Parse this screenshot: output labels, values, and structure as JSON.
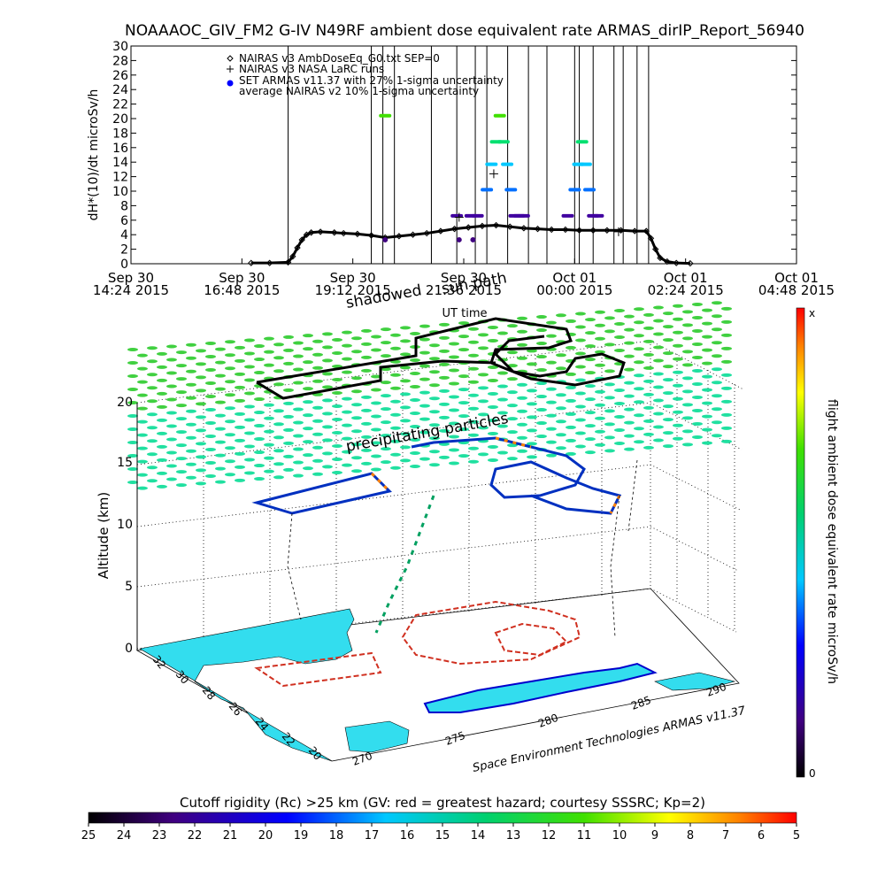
{
  "title": "NOAAAOC_GIV_FM2 G-IV   N49RF  ambient dose equivalent rate ARMAS_dirIP_Report_56940",
  "chart_data": [
    {
      "type": "scatter",
      "ylabel": "dH*(10)/dt microSv/h",
      "xlabel": "UT time",
      "ylim": [
        0,
        30
      ],
      "yticks": [
        0,
        2,
        4,
        6,
        8,
        10,
        12,
        14,
        16,
        18,
        20,
        22,
        24,
        26,
        28,
        30
      ],
      "xticks": [
        {
          "line1": "Sep 30",
          "line2": "14:24 2015"
        },
        {
          "line1": "Sep 30",
          "line2": "16:48 2015"
        },
        {
          "line1": "Sep 30",
          "line2": "19:12 2015"
        },
        {
          "line1": "Sep 30",
          "line2": "21:36 2015"
        },
        {
          "line1": "Oct 01",
          "line2": "00:00 2015"
        },
        {
          "line1": "Oct 01",
          "line2": "02:24 2015"
        },
        {
          "line1": "Oct 01",
          "line2": "04:48 2015"
        }
      ],
      "legend_position": "top-left",
      "legend": [
        {
          "symbol": "diamond",
          "label": "NAIRAS v3 AmbDoseEq_G0.txt SEP=0"
        },
        {
          "symbol": "plus",
          "label": "NAIRAS v3 NASA LaRC runs"
        },
        {
          "symbol": "dot",
          "label": "SET ARMAS v11.37 with 27% 1-sigma uncertainty"
        },
        {
          "symbol": "none",
          "label": "average NAIRAS v2 10% 1-sigma uncertainty"
        }
      ],
      "series": [
        {
          "name": "NAIRAS v3 AmbDoseEq_G0.txt SEP=0",
          "x_hours": [
            17.0,
            17.4,
            17.8,
            17.9,
            18.0,
            18.1,
            18.2,
            18.3,
            18.5,
            18.8,
            19.0,
            19.3,
            19.6,
            19.9,
            20.2,
            20.5,
            20.8,
            21.1,
            21.4,
            21.7,
            22.0,
            22.3,
            22.6,
            22.9,
            23.2,
            23.5,
            23.8,
            24.1,
            24.4,
            24.7,
            25.0,
            25.3,
            25.55,
            25.65,
            25.75,
            25.85,
            26.0,
            26.2,
            26.5
          ],
          "y": [
            0.1,
            0.1,
            0.2,
            1.0,
            2.2,
            3.3,
            4.0,
            4.3,
            4.4,
            4.3,
            4.2,
            4.1,
            3.9,
            3.6,
            3.8,
            4.0,
            4.2,
            4.5,
            4.8,
            5.0,
            5.2,
            5.3,
            5.1,
            4.9,
            4.8,
            4.7,
            4.7,
            4.6,
            4.6,
            4.6,
            4.6,
            4.5,
            4.5,
            3.5,
            2.0,
            0.8,
            0.3,
            0.1,
            0.05
          ]
        },
        {
          "name": "SET ARMAS v11.37 with 27% 1-sigma uncertainty",
          "x_hours": [
            19.9,
            21.45,
            21.75,
            21.9,
            22.1,
            22.2,
            22.3,
            22.38,
            22.46,
            22.54,
            22.62,
            22.7,
            22.8,
            22.9,
            23.85,
            24.0,
            24.08,
            24.16,
            24.24,
            24.32,
            24.4,
            24.5
          ],
          "y": [
            20.4,
            6.6,
            6.6,
            6.6,
            10.2,
            13.7,
            16.8,
            20.4,
            16.8,
            13.7,
            10.2,
            6.6,
            6.6,
            6.6,
            6.6,
            10.2,
            13.7,
            16.8,
            13.7,
            10.2,
            6.6,
            6.6
          ]
        },
        {
          "name": "NAIRAS v3 NASA LaRC runs",
          "x_hours": [
            21.5,
            22.25,
            24.95
          ],
          "y": [
            6.4,
            12.4,
            4.4
          ]
        }
      ],
      "low_points": {
        "x_hours": [
          19.9,
          21.5,
          21.8
        ],
        "y": [
          3.3,
          3.3,
          3.3
        ]
      },
      "vertical_marks_hours": [
        17.8,
        19.6,
        19.85,
        20.1,
        20.9,
        21.45,
        21.85,
        22.1,
        22.55,
        23.0,
        23.4,
        24.0,
        24.1,
        24.4,
        24.85,
        25.05,
        25.35,
        25.6
      ]
    },
    {
      "type": "scatter",
      "zlabel": "Altitude (km)",
      "zticks": [
        "0",
        "5",
        "10",
        "15",
        "20"
      ],
      "lat_ticks": [
        "32",
        "30",
        "28",
        "26",
        "24",
        "22",
        "20"
      ],
      "lon_ticks": [
        "270",
        "275",
        "280",
        "285",
        "290"
      ],
      "annotations": [
        "shadowed",
        "sun path",
        "precipitating particles"
      ],
      "credit": "Space Environment Technologies ARMAS v11.37",
      "colorbar": {
        "label": "flight ambient dose equivalent rate microSv/h",
        "top_label": "x",
        "bottom_label": "0"
      }
    },
    {
      "type": "heatmap",
      "title": "Cutoff rigidity (Rc) >25 km (GV: red = greatest hazard; courtesy SSSRC; Kp=2)",
      "ticks": [
        "25",
        "24",
        "23",
        "22",
        "21",
        "20",
        "19",
        "18",
        "17",
        "16",
        "15",
        "14",
        "13",
        "12",
        "11",
        "10",
        "9",
        "8",
        "7",
        "6",
        "5"
      ]
    }
  ]
}
